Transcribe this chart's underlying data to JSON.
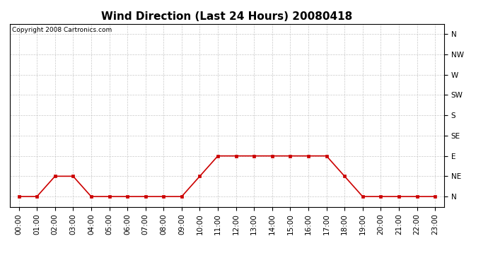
{
  "title": "Wind Direction (Last 24 Hours) 20080418",
  "copyright_text": "Copyright 2008 Cartronics.com",
  "hours": [
    0,
    1,
    2,
    3,
    4,
    5,
    6,
    7,
    8,
    9,
    10,
    11,
    12,
    13,
    14,
    15,
    16,
    17,
    18,
    19,
    20,
    21,
    22,
    23
  ],
  "hour_labels": [
    "00:00",
    "01:00",
    "02:00",
    "03:00",
    "04:00",
    "05:00",
    "06:00",
    "07:00",
    "08:00",
    "09:00",
    "10:00",
    "11:00",
    "12:00",
    "13:00",
    "14:00",
    "15:00",
    "16:00",
    "17:00",
    "18:00",
    "19:00",
    "20:00",
    "21:00",
    "22:00",
    "23:00"
  ],
  "wind_values": [
    0,
    0,
    1,
    1,
    0,
    0,
    0,
    0,
    0,
    0,
    1,
    2,
    2,
    2,
    2,
    2,
    2,
    2,
    1,
    0,
    0,
    0,
    0,
    0
  ],
  "ytick_labels": [
    "N",
    "NE",
    "E",
    "SE",
    "S",
    "SW",
    "W",
    "NW",
    "N"
  ],
  "ytick_values": [
    0,
    1,
    2,
    3,
    4,
    5,
    6,
    7,
    8
  ],
  "line_color": "#cc0000",
  "marker_color": "#cc0000",
  "grid_color": "#bbbbbb",
  "bg_color": "#ffffff",
  "title_fontsize": 11,
  "axis_fontsize": 7.5,
  "copyright_fontsize": 6.5
}
